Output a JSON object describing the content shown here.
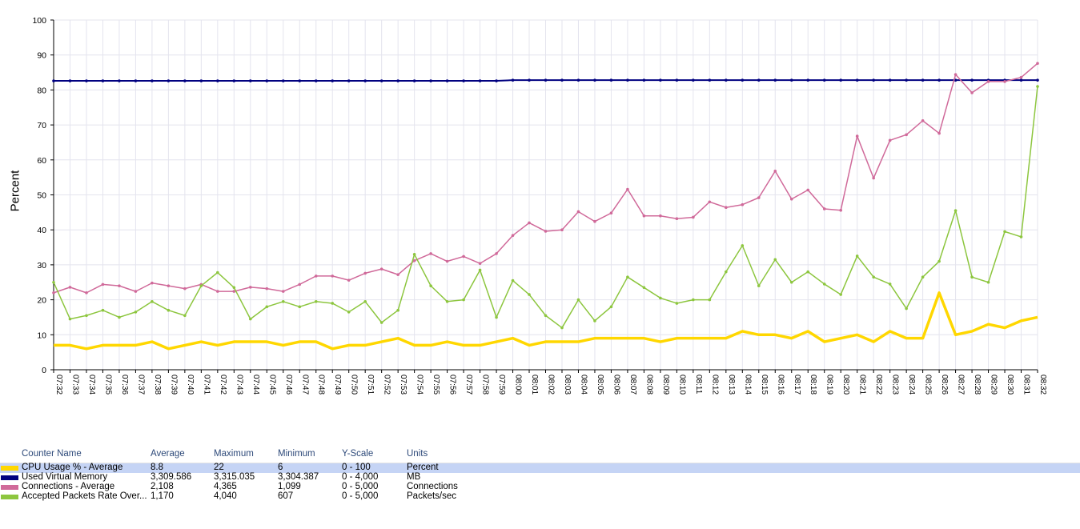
{
  "chart_data": {
    "type": "line",
    "ylabel": "Percent",
    "ylim": [
      0,
      100
    ],
    "yticks": [
      "0",
      "10",
      "20",
      "30",
      "40",
      "50",
      "60",
      "70",
      "80",
      "90",
      "100"
    ],
    "categories": [
      "07:32",
      "07:33",
      "07:34",
      "07:35",
      "07:36",
      "07:37",
      "07:38",
      "07:39",
      "07:40",
      "07:41",
      "07:42",
      "07:43",
      "07:44",
      "07:45",
      "07:46",
      "07:47",
      "07:48",
      "07:49",
      "07:50",
      "07:51",
      "07:52",
      "07:53",
      "07:54",
      "07:55",
      "07:56",
      "07:57",
      "07:58",
      "07:59",
      "08:00",
      "08:01",
      "08:02",
      "08:03",
      "08:04",
      "08:05",
      "08:06",
      "08:07",
      "08:08",
      "08:09",
      "08:10",
      "08:11",
      "08:12",
      "08:13",
      "08:14",
      "08:15",
      "08:16",
      "08:17",
      "08:18",
      "08:19",
      "08:20",
      "08:21",
      "08:22",
      "08:23",
      "08:24",
      "08:25",
      "08:26",
      "08:27",
      "08:28",
      "08:29",
      "08:30",
      "08:31",
      "08:32"
    ],
    "grid": true,
    "series": [
      {
        "name": "CPU Usage % - Average",
        "color": "#ffd700",
        "width": 3.5,
        "marker": false,
        "values": [
          7,
          7,
          6,
          7,
          7,
          7,
          8,
          6,
          7,
          8,
          7,
          8,
          8,
          8,
          7,
          8,
          8,
          6,
          7,
          7,
          8,
          9,
          7,
          7,
          8,
          7,
          7,
          8,
          9,
          7,
          8,
          8,
          8,
          9,
          9,
          9,
          9,
          8,
          9,
          9,
          9,
          9,
          11,
          10,
          10,
          9,
          11,
          8,
          9,
          10,
          8,
          11,
          9,
          9,
          22,
          10,
          11,
          13,
          12,
          14,
          15
        ]
      },
      {
        "name": "Used Virtual Memory",
        "color": "#000080",
        "width": 2,
        "marker": true,
        "values": [
          82.6,
          82.6,
          82.6,
          82.6,
          82.6,
          82.6,
          82.6,
          82.6,
          82.6,
          82.6,
          82.6,
          82.6,
          82.6,
          82.6,
          82.6,
          82.6,
          82.6,
          82.6,
          82.6,
          82.6,
          82.6,
          82.6,
          82.6,
          82.6,
          82.6,
          82.6,
          82.6,
          82.6,
          82.8,
          82.8,
          82.8,
          82.8,
          82.8,
          82.8,
          82.8,
          82.8,
          82.8,
          82.8,
          82.8,
          82.8,
          82.8,
          82.8,
          82.8,
          82.8,
          82.8,
          82.8,
          82.8,
          82.8,
          82.8,
          82.8,
          82.8,
          82.8,
          82.8,
          82.8,
          82.8,
          82.8,
          82.8,
          82.8,
          82.8,
          82.8,
          82.8
        ]
      },
      {
        "name": "Connections - Average",
        "color": "#d06a9a",
        "width": 1.5,
        "marker": true,
        "values": [
          22,
          23.6,
          22,
          24.4,
          24,
          22.4,
          24.8,
          24,
          23.2,
          24.4,
          22.4,
          22.4,
          23.6,
          23.2,
          22.4,
          24.4,
          26.8,
          26.8,
          25.6,
          27.6,
          28.8,
          27.2,
          31.2,
          33.2,
          31,
          32.4,
          30.4,
          33.2,
          38.4,
          42,
          39.6,
          40,
          45.2,
          42.4,
          44.8,
          51.6,
          44,
          44,
          43.2,
          43.6,
          48,
          46.4,
          47.2,
          49.2,
          56.8,
          48.8,
          51.4,
          46,
          45.6,
          66.8,
          54.8,
          65.6,
          67.2,
          71.2,
          67.6,
          84.4,
          79.2,
          82.4,
          82.4,
          83.6,
          87.6
        ]
      },
      {
        "name": "Accepted Packets Rate Over...",
        "color": "#8dc63f",
        "width": 1.5,
        "marker": true,
        "values": [
          25,
          14.5,
          15.5,
          17,
          15,
          16.5,
          19.5,
          17,
          15.5,
          24,
          27.8,
          23.5,
          14.5,
          18,
          19.5,
          18,
          19.5,
          19,
          16.5,
          19.5,
          13.5,
          17,
          33,
          24,
          19.5,
          20,
          28.5,
          15,
          25.5,
          21.5,
          15.5,
          12,
          20,
          14,
          18,
          26.5,
          23.5,
          20.5,
          19,
          20,
          20,
          28,
          35.5,
          24,
          31.5,
          25,
          28,
          24.5,
          21.5,
          32.5,
          26.5,
          24.5,
          17.5,
          26.5,
          31,
          45.5,
          26.5,
          25,
          39.5,
          38,
          81
        ]
      }
    ]
  },
  "legend": {
    "headers": [
      "Counter Name",
      "Average",
      "Maximum",
      "Minimum",
      "Y-Scale",
      "Units"
    ],
    "rows": [
      {
        "color": "#ffd700",
        "name": "CPU Usage % - Average",
        "average": "8.8",
        "maximum": "22",
        "minimum": "6",
        "yscale": "0 - 100",
        "units": "Percent"
      },
      {
        "color": "#000080",
        "name": "Used Virtual Memory",
        "average": "3,309.586",
        "maximum": "3,315.035",
        "minimum": "3,304.387",
        "yscale": "0 - 4,000",
        "units": "MB"
      },
      {
        "color": "#d06a9a",
        "name": "Connections - Average",
        "average": "2,108",
        "maximum": "4,365",
        "minimum": "1,099",
        "yscale": "0 - 5,000",
        "units": "Connections"
      },
      {
        "color": "#8dc63f",
        "name": "Accepted Packets Rate Over...",
        "average": "1,170",
        "maximum": "4,040",
        "minimum": "607",
        "yscale": "0 - 5,000",
        "units": "Packets/sec"
      }
    ]
  }
}
